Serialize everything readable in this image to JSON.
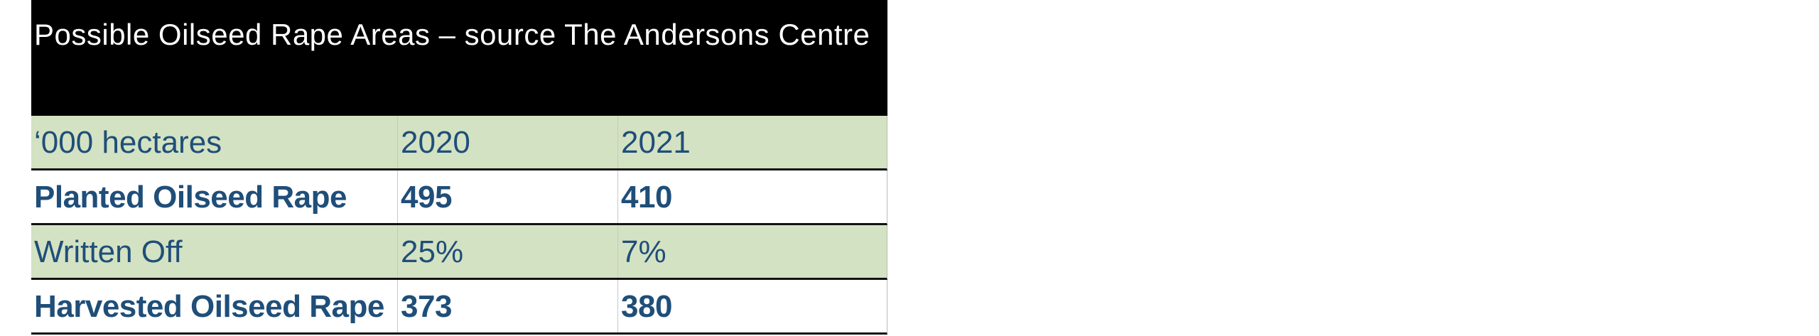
{
  "title": "Possible Oilseed Rape Areas – source The Andersons Centre",
  "header": [
    "‘000 hectares",
    "2020",
    "2021"
  ],
  "rows": [
    {
      "label": "Planted Oilseed Rape",
      "y2020": "495",
      "y2021": "410"
    },
    {
      "label": "Written Off",
      "y2020": "25%",
      "y2021": "7%"
    },
    {
      "label": "Harvested Oilseed Rape",
      "y2020": "373",
      "y2021": "380"
    }
  ],
  "colors": {
    "title_bg": "#000000",
    "band": "#d3e2c2",
    "text": "#1f4e79"
  }
}
